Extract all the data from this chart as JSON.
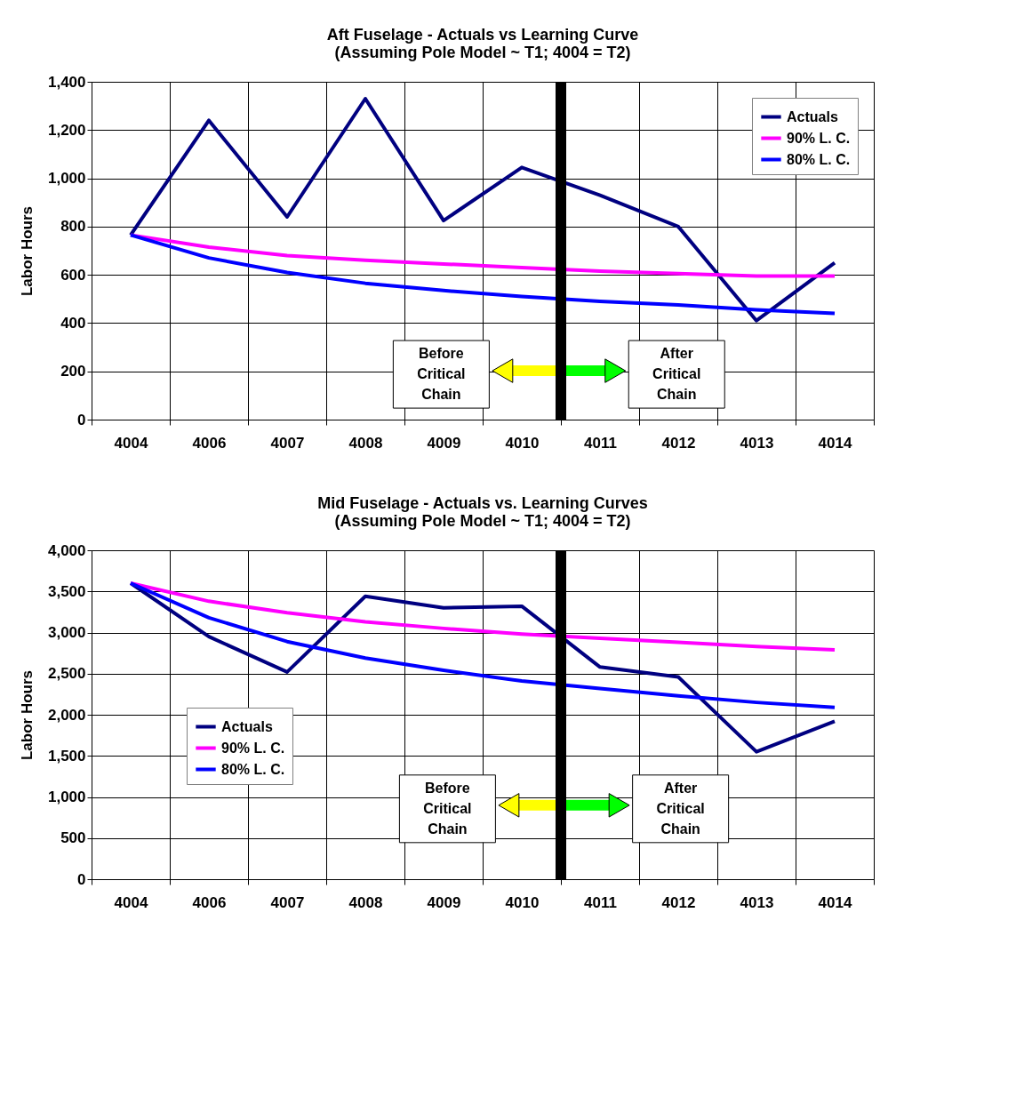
{
  "chart_data": [
    {
      "type": "line",
      "title": [
        "Aft Fuselage - Actuals vs Learning Curve",
        "(Assuming Pole Model ~ T1; 4004 = T2)"
      ],
      "ylabel": "Labor Hours",
      "categories": [
        "4004",
        "4006",
        "4007",
        "4008",
        "4009",
        "4010",
        "4011",
        "4012",
        "4013",
        "4014"
      ],
      "series": [
        {
          "name": "Actuals",
          "color": "#000080",
          "values": [
            765,
            1240,
            840,
            1330,
            825,
            1045,
            930,
            800,
            410,
            650
          ]
        },
        {
          "name": "90% L. C.",
          "color": "#ff00ff",
          "values": [
            765,
            715,
            680,
            660,
            645,
            630,
            615,
            605,
            595,
            595
          ]
        },
        {
          "name": "80% L. C.",
          "color": "#0000ff",
          "values": [
            765,
            670,
            610,
            565,
            535,
            510,
            490,
            475,
            455,
            440
          ]
        }
      ],
      "ylim": [
        0,
        1400
      ],
      "yticks": [
        0,
        200,
        400,
        600,
        800,
        {
          "value": 1000,
          "label": "1,000"
        },
        {
          "value": 1200,
          "label": "1,200"
        },
        {
          "value": 1400,
          "label": "1,400"
        }
      ],
      "annotations": [
        "Before Critical Chain",
        "After Critical Chain"
      ],
      "ref_lines": [
        {
          "axis": "x",
          "value": "4010",
          "color": "#000000"
        }
      ],
      "grid": true,
      "legend": "top right",
      "marker": "none",
      "line_style": "solid"
    },
    {
      "type": "line",
      "title": [
        "Mid Fuselage - Actuals vs. Learning Curves",
        "(Assuming Pole Model ~ T1; 4004 = T2)"
      ],
      "ylabel": "Labor Hours",
      "categories": [
        "4004",
        "4006",
        "4007",
        "4008",
        "4009",
        "4010",
        "4011",
        "4012",
        "4013",
        "4014"
      ],
      "series": [
        {
          "name": "Actuals",
          "color": "#000080",
          "values": [
            3600,
            2950,
            2520,
            3440,
            3300,
            3320,
            2580,
            2460,
            1550,
            1920
          ]
        },
        {
          "name": "90% L. C.",
          "color": "#ff00ff",
          "values": [
            3600,
            3380,
            3240,
            3130,
            3050,
            2980,
            2930,
            2880,
            2830,
            2790
          ]
        },
        {
          "name": "80% L. C.",
          "color": "#0000ff",
          "values": [
            3600,
            3180,
            2890,
            2690,
            2540,
            2410,
            2320,
            2230,
            2150,
            2090
          ]
        }
      ],
      "ylim": [
        0,
        4000
      ],
      "yticks": [
        0,
        500,
        {
          "value": 1000,
          "label": "1,000"
        },
        {
          "value": 1500,
          "label": "1,500"
        },
        {
          "value": 2000,
          "label": "2,000"
        },
        {
          "value": 2500,
          "label": "2,500"
        },
        {
          "value": 3000,
          "label": "3,000"
        },
        {
          "value": 3500,
          "label": "3,500"
        },
        {
          "value": 4000,
          "label": "4,000"
        }
      ],
      "annotations": [
        "Before Critical Chain",
        "After Critical Chain"
      ],
      "ref_lines": [
        {
          "axis": "x",
          "value": "4010",
          "color": "#000000"
        }
      ],
      "grid": true,
      "legend": "left",
      "marker": "none",
      "line_style": "solid"
    }
  ]
}
